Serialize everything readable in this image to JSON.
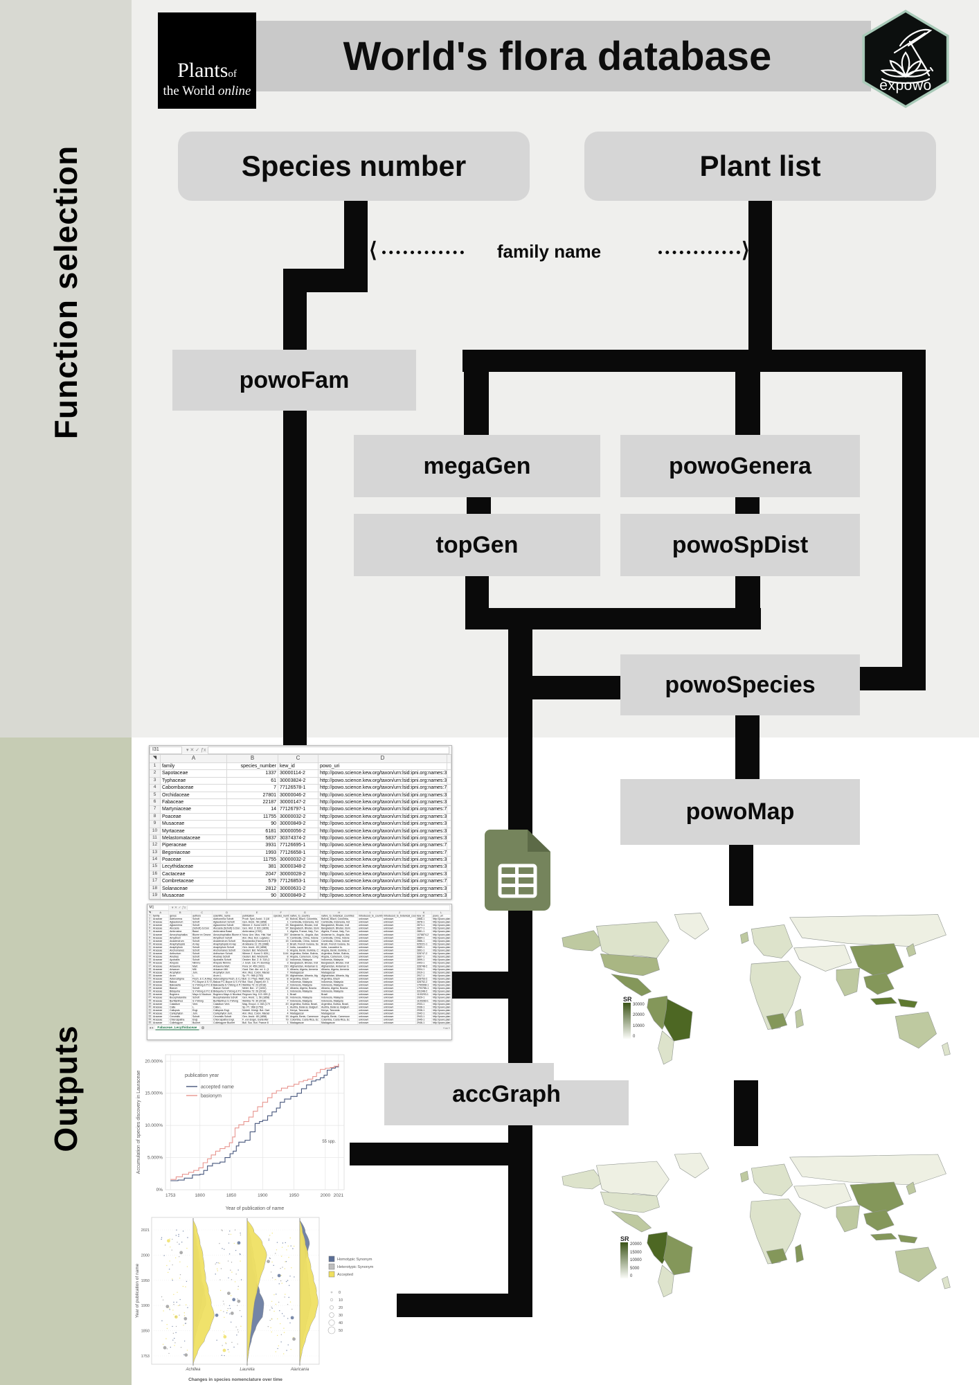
{
  "header": {
    "logo": {
      "word1": "Plants",
      "word1b": "of",
      "word2": "the World",
      "word2b": "online"
    },
    "title": "World's flora database",
    "badge": "expowo"
  },
  "sidebar": {
    "top_label": "Function selection",
    "bottom_label": "Outputs"
  },
  "flow": {
    "species_number": "Species number",
    "plant_list": "Plant list",
    "family_name": "family name",
    "boxes": {
      "powoFam": "powoFam",
      "megaGen": "megaGen",
      "powoGenera": "powoGenera",
      "topGen": "topGen",
      "powoSpDist": "powoSpDist",
      "powoSpecies": "powoSpecies",
      "powoMap": "powoMap",
      "accGraph": "accGraph"
    }
  },
  "colors": {
    "line": "#0a0a0a",
    "box_fill": "#d6d6d6",
    "bg_top": "#efefed",
    "sidebar_top": "#d8d9d2",
    "sidebar_bottom": "#c6ccb4",
    "hex_border": "#a8cab8",
    "sheets_icon_green": "#75845c",
    "excel_green": "#1e7145",
    "accepted_line": "#46567c",
    "basionym_line": "#e8958f",
    "ridge_homotypic": "#5a6e96",
    "ridge_heterotypic": "#bdbdbd",
    "ridge_accepted": "#efdf5e",
    "map_palette": {
      "dark": "#4d6723",
      "dark2": "#5f7a30",
      "mid1": "#84975a",
      "mid": "#a9b683",
      "mid2": "#bec9a0",
      "pale2": "#dde3cb",
      "pale": "#eef0e3"
    }
  },
  "sheet1": {
    "name_box": "I31",
    "tab": "powoFam_results",
    "add_tab": "+",
    "col_letters": [
      "A",
      "B",
      "C",
      "D"
    ],
    "headers": [
      "family",
      "species_number",
      "kew_id",
      "powo_uri"
    ],
    "url_prefix": "http://powo.science.kew.org/taxon/urn:lsid:ipni.org:names:",
    "rows": [
      [
        "Sapotaceae",
        "1337",
        "30000114-2"
      ],
      [
        "Typhaceae",
        "61",
        "30003824-2"
      ],
      [
        "Cabombaceae",
        "7",
        "77126578-1"
      ],
      [
        "Orchidaceae",
        "27801",
        "30000046-2"
      ],
      [
        "Fabaceae",
        "22187",
        "30000147-2"
      ],
      [
        "Martyniaceae",
        "14",
        "77126797-1"
      ],
      [
        "Poaceae",
        "11755",
        "30000032-2"
      ],
      [
        "Musaceae",
        "90",
        "30000849-2"
      ],
      [
        "Myrtaceae",
        "6181",
        "30000056-2"
      ],
      [
        "Melastomataceae",
        "5837",
        "30374374-2"
      ],
      [
        "Piperaceae",
        "3931",
        "77126695-1"
      ],
      [
        "Begoniaceae",
        "1993",
        "77126658-1"
      ],
      [
        "Poaceae",
        "11755",
        "30000032-2"
      ],
      [
        "Lecythidaceae",
        "381",
        "30000348-2"
      ],
      [
        "Cactaceae",
        "2047",
        "30000028-2"
      ],
      [
        "Combretaceae",
        "579",
        "77126853-1"
      ],
      [
        "Solanaceae",
        "2812",
        "30000631-2"
      ],
      [
        "Musaceae",
        "90",
        "30000849-2"
      ]
    ]
  },
  "sheet2": {
    "name_box": "M1",
    "tab": "Fabaceae_Lecythidaceae",
    "add_tab": "+",
    "col_letters": [
      "A",
      "B",
      "C",
      "D",
      "E",
      "F",
      "G",
      "H",
      "I",
      "J",
      "K",
      "L"
    ],
    "headers": [
      "family",
      "genus",
      "authors",
      "scientific_name",
      "publication",
      "species_number",
      "native_to_country",
      "native_to_botanical_countries",
      "introduced_to_country",
      "introduced_to_botanical_countries",
      "kew_id",
      "powo_uri"
    ],
    "family": "Araceae",
    "unknown": "unknown",
    "uri_stub": "http://powo.plan",
    "rows": [
      [
        "Adelonema",
        "Schott",
        "Prodr. Syst. Aroid.: 3 (18",
        "16",
        "Bolivia, Brazil, Colombia,",
        "2868-1"
      ],
      [
        "Aglaodorum",
        "Schott",
        "Gen. Aroid.: 56 (1858)",
        "1",
        "Cambodia, Indonesia, Ind",
        "2878-1"
      ],
      [
        "Aglaonema",
        "Schott",
        "Wiener Z. Kunst 1829: 3",
        "25",
        "Bangladesh, Bhutan, Indi",
        "2873-1"
      ],
      [
        "Alocasia",
        "(Schott) G.Don",
        "Gen. Hist. 3: 631 (1839)",
        "97",
        "Bangladesh, Bhutan, Born",
        "2877-1"
      ],
      [
        "Ambrosina",
        "Bassi",
        "Ambrosina (1763)",
        "1",
        "Algeria, France, Italy, Tun",
        "2881-1"
      ],
      [
        "Amorphophallus",
        "Blume ex Decne.",
        "Nouv. Ann. Mus. Hist. Nat",
        "257",
        "Andaman Is., Angola, Ass",
        "1078874-2"
      ],
      [
        "Amydrium",
        "Schott",
        "Ann. Mus. Bot. Lugduno-",
        "5",
        "Cambodia, China, Indone",
        "2884-1"
      ],
      [
        "Anadendrum",
        "Schott",
        "Bonplandia (Hannover) 5",
        "15",
        "Cambodia, China, Indone",
        "2886-1"
      ],
      [
        "Anaphyllopsis",
        "A.Hay",
        "Aroideana 11: 25 (1988)",
        "3",
        "Brazil, French Guiana, Su",
        "925221-1"
      ],
      [
        "Anaphyllum",
        "Schott",
        "Gen. Aroid.: 83 (1858)",
        "2",
        "India, Laccadive Is.",
        "2889-1"
      ],
      [
        "Anchomanes",
        "Schott",
        "Oesterr. Bot. Wochenbl.",
        "6",
        "Angola, Benin, Burkina, C",
        "2891-1"
      ],
      [
        "Anthurium",
        "Schott",
        "Wiener Z. Kunst 3: 828 (",
        "1144",
        "Argentina, Belize, Bolivia,",
        "328747-2"
      ],
      [
        "Anubias",
        "Schott",
        "Oesterr. Bot. Wochenbl.",
        "8",
        "Angola, Cameroon, Cong",
        "2897-1"
      ],
      [
        "Apoballis",
        "Schott",
        "Oesterr. Bot. Z. 8: 318 (1",
        "12",
        "Indonesia, Malaysia",
        "2899-1"
      ],
      [
        "Ariopsis",
        "Nimmo",
        "J. Grah. Cat. Pl. Bombay",
        "3",
        "Bangladesh, Bhutan, Indi",
        "2903-1"
      ],
      [
        "Arisaema",
        "Mart.",
        "Flora 14: 459 (1831)",
        "210",
        "Afghanistan, Andaman Is",
        "328748-2"
      ],
      [
        "Arisarum",
        "Mill.",
        "Gard. Dict. Abr. ed. 4. (1",
        "3",
        "Albania, Algeria, Armenia",
        "2904-1"
      ],
      [
        "Arophyton",
        "Jum.",
        "Ann. Mus. Colon. Marsei",
        "7",
        "Madagascar",
        "2910-1"
      ],
      [
        "Arum",
        "L.",
        "Sp. Pl.: 966 (1753)",
        "25",
        "Afghanistan, Albania, Alg",
        "2917-1"
      ],
      [
        "Asterostigma",
        "Fisch. & C.A.Mey.",
        "Bull. Cl. Phys.-Math. Aca",
        "8",
        "Argentina, Brazil",
        "328753-2"
      ],
      [
        "Bakoa",
        "P.C.Boyce & S.Y.Wong",
        "Bot. Stud. (Taipei) 49: 3",
        "1",
        "Indonesia, Malaysia",
        "328752-2"
      ],
      [
        "Bakoaella",
        "S.Y.Wong & P.C.Boyce",
        "Webbia 73: 23 (2018)",
        "2",
        "Indonesia, Malaysia",
        "1790998-1"
      ],
      [
        "Biarum",
        "Schott",
        "Melet. Bot.: 17 (1832)",
        "22",
        "Albania, Algeria, Bosnia",
        "1793786-1"
      ],
      [
        "Bidayuha",
        "S.Y.Wong & P.C.Boyce",
        "Webbia 73: 26 (2018)",
        "1",
        "Indonesia, Malaysia",
        "331348-2"
      ],
      [
        "Bognera",
        "Mayo & Nicolson",
        "Regnum Veg. 113: 690 (1",
        "1",
        "Brazil",
        "1100293-1"
      ],
      [
        "Bucephalandra",
        "Schott",
        "Gen. Aroid.: 1, 56 (1858)",
        "31",
        "Indonesia, Malaysia",
        "2929-1"
      ],
      [
        "Burttianthus",
        "S.Y.Wong",
        "Webbia 73: 30 (2018)",
        "7",
        "Indonesia, Malaysia",
        "1100283-1"
      ],
      [
        "Caladium",
        "Vent.",
        "Mag. Encycl. 4: 463 (179",
        "20",
        "Argentina, Bolivia, Brazil,",
        "2933-1"
      ],
      [
        "Calla",
        "L.",
        "Sp. Pl.: 968 (1753)",
        "1",
        "Austria, Belarus, Belgium",
        "2936-1"
      ],
      [
        "Callopsis",
        "Engl.",
        "Notizbl. Königl. Bot. Gart",
        "1",
        "Kenya, Tanzania",
        "2938-1"
      ],
      [
        "Carlephyton",
        "Jum.",
        "Ann. Mus. Colon. Marsei",
        "4",
        "Madagascar",
        "2942-1"
      ],
      [
        "Cercestis",
        "Schott",
        "Gen. Aroid.: 80 (1858)",
        "15",
        "Angola, Benin, Cameroon",
        "2943-1"
      ],
      [
        "Chlorospatha",
        "Engl.",
        "F. von Engel, Gartenflor",
        "79",
        "Colombia, Costa Rica, Ec",
        "2945-1"
      ],
      [
        "Colletogyne",
        "Buchet",
        "Bull. Soc. Bot. France 8",
        "1",
        "Madagascar",
        "2946-1"
      ]
    ]
  },
  "chart_data": [
    {
      "type": "line",
      "name": "accumulation-curve",
      "xlabel": "Year of publication of name",
      "ylabel": "Accumulation of species discovery in Lauraceae",
      "x_ticks": [
        1753,
        1800,
        1850,
        1900,
        1950,
        2000,
        2021
      ],
      "y_ticks": [
        "0%",
        "5.000%",
        "10.000%",
        "15.000%",
        "20.000%"
      ],
      "ylim": [
        0,
        21
      ],
      "xlim": [
        1745,
        2030
      ],
      "legend_title": "publication year",
      "annotation": "55 spp.",
      "grid": true,
      "legend_position": "top-left-inside",
      "series": [
        {
          "name": "accepted name",
          "color": "#46567c",
          "points": [
            [
              1753,
              1.4
            ],
            [
              1765,
              1.5
            ],
            [
              1775,
              1.8
            ],
            [
              1788,
              2.3
            ],
            [
              1800,
              2.4
            ],
            [
              1806,
              3.0
            ],
            [
              1812,
              3.7
            ],
            [
              1820,
              4.1
            ],
            [
              1832,
              4.3
            ],
            [
              1840,
              5.0
            ],
            [
              1848,
              5.6
            ],
            [
              1853,
              6.0
            ],
            [
              1858,
              6.8
            ],
            [
              1862,
              7.4
            ],
            [
              1872,
              7.7
            ],
            [
              1880,
              9.0
            ],
            [
              1888,
              10.3
            ],
            [
              1895,
              10.6
            ],
            [
              1900,
              10.8
            ],
            [
              1908,
              11.5
            ],
            [
              1915,
              12.1
            ],
            [
              1922,
              12.7
            ],
            [
              1928,
              13.6
            ],
            [
              1935,
              14.1
            ],
            [
              1945,
              14.5
            ],
            [
              1955,
              15.0
            ],
            [
              1962,
              15.7
            ],
            [
              1970,
              16.3
            ],
            [
              1978,
              16.9
            ],
            [
              1985,
              17.1
            ],
            [
              1992,
              17.4
            ],
            [
              1998,
              17.8
            ],
            [
              2003,
              18.6
            ],
            [
              2010,
              18.9
            ],
            [
              2016,
              19.1
            ],
            [
              2021,
              19.5
            ]
          ]
        },
        {
          "name": "basionym",
          "color": "#e8958f",
          "points": [
            [
              1753,
              1.6
            ],
            [
              1762,
              2.0
            ],
            [
              1772,
              2.4
            ],
            [
              1782,
              2.7
            ],
            [
              1790,
              3.0
            ],
            [
              1798,
              3.4
            ],
            [
              1805,
              4.2
            ],
            [
              1812,
              4.8
            ],
            [
              1818,
              5.4
            ],
            [
              1825,
              6.0
            ],
            [
              1832,
              6.4
            ],
            [
              1840,
              6.7
            ],
            [
              1847,
              7.3
            ],
            [
              1852,
              8.2
            ],
            [
              1856,
              9.6
            ],
            [
              1862,
              10.1
            ],
            [
              1870,
              10.6
            ],
            [
              1878,
              11.3
            ],
            [
              1885,
              12.2
            ],
            [
              1892,
              12.9
            ],
            [
              1900,
              13.6
            ],
            [
              1908,
              14.3
            ],
            [
              1915,
              15.0
            ],
            [
              1922,
              15.4
            ],
            [
              1930,
              15.8
            ],
            [
              1940,
              16.1
            ],
            [
              1950,
              16.4
            ],
            [
              1958,
              16.8
            ],
            [
              1965,
              17.0
            ],
            [
              1972,
              17.2
            ],
            [
              1980,
              17.6
            ],
            [
              1986,
              18.2
            ],
            [
              1992,
              18.7
            ],
            [
              2000,
              18.9
            ],
            [
              2008,
              19.0
            ],
            [
              2014,
              19.2
            ],
            [
              2021,
              19.6
            ]
          ]
        }
      ]
    },
    {
      "type": "area",
      "name": "ridge-plot",
      "xlabel": "Changes in species nomenclature over time",
      "ylabel": "Year of publication of name",
      "categories": [
        "Achillea",
        "Laurelia",
        "Alaricania"
      ],
      "y_ticks": [
        "2021",
        "2000",
        "1950",
        "1900",
        "1850",
        "1753"
      ],
      "legend": [
        {
          "label": "Homotypic Synonym",
          "color": "#5a6e96"
        },
        {
          "label": "Heterotypic Synonym",
          "color": "#bdbdbd"
        },
        {
          "label": "Accepted",
          "color": "#efdf5e"
        }
      ],
      "size_legend": [
        "0",
        "10",
        "20",
        "30",
        "40",
        "50"
      ],
      "ridges": {
        "g1": {
          "accepted": [
            0,
            6,
            10,
            14,
            16,
            18,
            22,
            26,
            30,
            24,
            16,
            6,
            0
          ],
          "homotypic": [
            0,
            2,
            4,
            6,
            8,
            10,
            14,
            12,
            8,
            4,
            2,
            0,
            0
          ],
          "heterotypic": [
            0,
            2,
            5,
            8,
            10,
            12,
            16,
            18,
            12,
            6,
            2,
            0,
            0
          ]
        },
        "g2": {
          "accepted": [
            0,
            10,
            22,
            28,
            24,
            18,
            14,
            10,
            8,
            6,
            4,
            2,
            0
          ],
          "homotypic": [
            0,
            2,
            4,
            6,
            8,
            12,
            18,
            24,
            22,
            12,
            6,
            2,
            0
          ],
          "heterotypic": [
            0,
            3,
            6,
            9,
            12,
            14,
            12,
            10,
            8,
            6,
            3,
            1,
            0
          ]
        },
        "g3": {
          "accepted": [
            0,
            4,
            8,
            12,
            16,
            20,
            24,
            26,
            22,
            14,
            8,
            3,
            0
          ],
          "homotypic": [
            0,
            8,
            14,
            10,
            6,
            4,
            3,
            2,
            2,
            1,
            1,
            0,
            0
          ],
          "heterotypic": [
            0,
            3,
            5,
            8,
            10,
            12,
            14,
            16,
            12,
            8,
            4,
            1,
            0
          ]
        }
      }
    },
    {
      "type": "heatmap",
      "name": "species-richness-map-country",
      "legend_title": "SR",
      "legend_ticks": [
        "30000",
        "20000",
        "10000",
        "0"
      ],
      "regions": {
        "canada": "pale2",
        "alaska": "mid2",
        "greenland": "pale",
        "usa": "mid",
        "mexico": "mid1",
        "colombia_peru": "mid1",
        "brazil": "dark",
        "s_cone": "pale2",
        "uk": "mid2",
        "europe": "pale2",
        "africa": "pale2",
        "safrica": "mid1",
        "madagascar": "mid2",
        "russia": "pale",
        "mideast": "pale",
        "china": "mid1",
        "india": "mid2",
        "sea": "mid1",
        "indonesia": "dark2",
        "japan": "mid2",
        "australia": "mid2",
        "nz": "pale2"
      }
    },
    {
      "type": "heatmap",
      "name": "species-richness-map-botanical",
      "legend_title": "SR",
      "legend_ticks": [
        "20000",
        "15000",
        "10000",
        "5000",
        "0"
      ],
      "regions": {
        "canada": "pale",
        "alaska": "pale2",
        "greenland": "pale",
        "usa": "pale2",
        "mexico": "mid2",
        "colombia_peru": "dark",
        "brazil": "mid1",
        "s_cone": "pale2",
        "uk": "mid2",
        "europe": "pale2",
        "africa": "pale2",
        "safrica": "mid1",
        "madagascar": "mid1",
        "russia": "pale",
        "mideast": "pale",
        "china": "mid1",
        "india": "mid2",
        "sea": "mid1",
        "indonesia": "mid1",
        "japan": "mid2",
        "australia": "mid2",
        "nz": "pale2"
      }
    }
  ]
}
